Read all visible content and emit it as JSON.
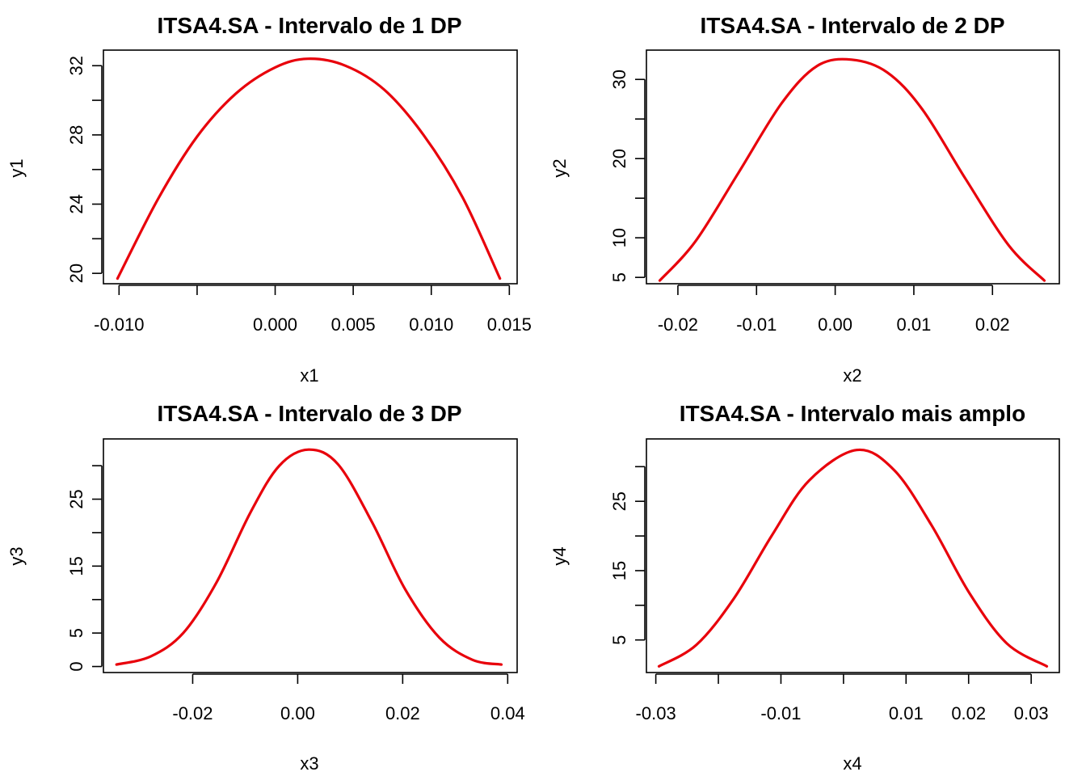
{
  "colors": {
    "curve": "#e8000b",
    "axis": "#000000",
    "background": "#ffffff"
  },
  "chart_data": [
    {
      "type": "line",
      "title": "ITSA4.SA - Intervalo de 1 DP",
      "xlabel": "x1",
      "ylabel": "y1",
      "xlim": [
        -0.011,
        0.0155
      ],
      "ylim": [
        19.4,
        32.9
      ],
      "xticks": [
        -0.01,
        -0.005,
        0.0,
        0.005,
        0.01,
        0.015
      ],
      "xtick_labels": [
        "-0.010",
        "",
        "0.000",
        "0.005",
        "0.010",
        "0.015"
      ],
      "yticks": [
        20,
        22,
        24,
        26,
        28,
        30,
        32
      ],
      "ytick_labels": [
        "20",
        "",
        "24",
        "",
        "28",
        "",
        "32"
      ],
      "series": [
        {
          "x": [
            -0.0101,
            -0.0075,
            -0.005,
            -0.0025,
            0.0,
            0.0021,
            0.0045,
            0.007,
            0.0095,
            0.012,
            0.0144
          ],
          "y": [
            19.7,
            24.3,
            27.9,
            30.4,
            31.9,
            32.4,
            32.0,
            30.6,
            28.0,
            24.4,
            19.7
          ]
        }
      ]
    },
    {
      "type": "line",
      "title": "ITSA4.SA - Intervalo de 2 DP",
      "xlabel": "x2",
      "ylabel": "y2",
      "xlim": [
        -0.024,
        0.0285
      ],
      "ylim": [
        4.2,
        33.7
      ],
      "xticks": [
        -0.02,
        -0.01,
        0.0,
        0.01,
        0.02
      ],
      "xtick_labels": [
        "-0.02",
        "-0.01",
        "0.00",
        "0.01",
        "0.02"
      ],
      "yticks": [
        5,
        10,
        15,
        20,
        25,
        30
      ],
      "ytick_labels": [
        "5",
        "10",
        "",
        "20",
        "",
        "30"
      ],
      "series": [
        {
          "x": [
            -0.0223,
            -0.0178,
            -0.0123,
            -0.0068,
            -0.0023,
            0.0021,
            0.0066,
            0.0111,
            0.0166,
            0.0221,
            0.0266
          ],
          "y": [
            4.6,
            9.5,
            18.2,
            27.0,
            31.7,
            32.5,
            30.9,
            26.2,
            17.4,
            9.0,
            4.6
          ]
        }
      ]
    },
    {
      "type": "line",
      "title": "ITSA4.SA - Intervalo de 3 DP",
      "xlabel": "x3",
      "ylabel": "y3",
      "xlim": [
        -0.037,
        0.0418
      ],
      "ylim": [
        -0.9,
        34.0
      ],
      "xticks": [
        -0.02,
        0.0,
        0.02,
        0.04
      ],
      "xtick_labels": [
        "-0.02",
        "0.00",
        "0.02",
        "0.04"
      ],
      "yticks": [
        0,
        5,
        10,
        15,
        20,
        25,
        30
      ],
      "ytick_labels": [
        "0",
        "5",
        "",
        "15",
        "",
        "25",
        ""
      ],
      "series": [
        {
          "x": [
            -0.0345,
            -0.028,
            -0.0218,
            -0.0155,
            -0.009,
            -0.0035,
            0.0021,
            0.0077,
            0.0142,
            0.0205,
            0.027,
            0.0333,
            0.0388
          ],
          "y": [
            0.3,
            1.5,
            5.0,
            12.5,
            23.0,
            30.0,
            32.4,
            30.2,
            21.5,
            11.5,
            4.3,
            1.0,
            0.3
          ]
        }
      ]
    },
    {
      "type": "line",
      "title": "ITSA4.SA - Intervalo mais amplo",
      "xlabel": "x4",
      "ylabel": "y4",
      "xlim": [
        -0.0315,
        0.0345
      ],
      "ylim": [
        0.3,
        34.0
      ],
      "xticks": [
        -0.03,
        -0.02,
        -0.01,
        0.0,
        0.01,
        0.02,
        0.03
      ],
      "xtick_labels": [
        "-0.03",
        "",
        "-0.01",
        "",
        "0.01",
        "0.02",
        "0.03"
      ],
      "yticks": [
        5,
        10,
        15,
        20,
        25,
        30
      ],
      "ytick_labels": [
        "5",
        "",
        "15",
        "",
        "25",
        ""
      ],
      "series": [
        {
          "x": [
            -0.0295,
            -0.0235,
            -0.0175,
            -0.0115,
            -0.0055,
            0.0021,
            0.0081,
            0.0141,
            0.0201,
            0.0261,
            0.0325
          ],
          "y": [
            1.2,
            4.3,
            11.0,
            20.0,
            28.0,
            32.4,
            29.5,
            21.5,
            11.8,
            4.5,
            1.2
          ]
        }
      ]
    }
  ]
}
